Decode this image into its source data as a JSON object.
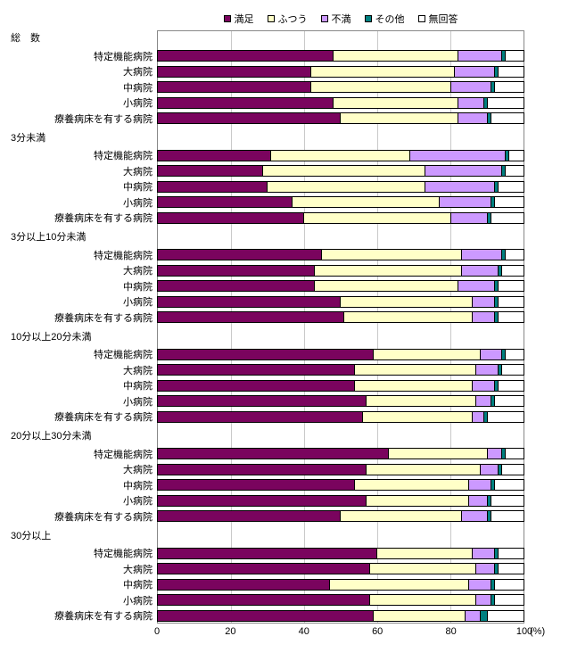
{
  "legend": [
    {
      "label": "満足",
      "color": "#7A045E"
    },
    {
      "label": "ふつう",
      "color": "#FFFFC8"
    },
    {
      "label": "不満",
      "color": "#CC99FF"
    },
    {
      "label": "その他",
      "color": "#008080"
    },
    {
      "label": "無回答",
      "color": "#FFFFFF"
    }
  ],
  "axis": {
    "ticks": [
      0,
      20,
      40,
      60,
      80,
      100
    ],
    "unit": "(%)",
    "min": 0,
    "max": 100,
    "gridlines": [
      20,
      40,
      60,
      80
    ]
  },
  "chart_data": {
    "type": "bar",
    "stacked": true,
    "orientation": "horizontal",
    "title": "",
    "xlabel": "(%)",
    "xlim": [
      0,
      100
    ],
    "series_names": [
      "満足",
      "ふつう",
      "不満",
      "その他",
      "無回答"
    ],
    "colors": [
      "#7A045E",
      "#FFFFC8",
      "#CC99FF",
      "#008080",
      "#FFFFFF"
    ],
    "groups": [
      {
        "label": "総　数",
        "rows": [
          {
            "label": "特定機能病院",
            "values": [
              48,
              34,
              12,
              1,
              5
            ]
          },
          {
            "label": "大病院",
            "values": [
              42,
              39,
              11,
              1,
              7
            ]
          },
          {
            "label": "中病院",
            "values": [
              42,
              38,
              11,
              1,
              8
            ]
          },
          {
            "label": "小病院",
            "values": [
              48,
              34,
              7,
              1,
              10
            ]
          },
          {
            "label": "療養病床を有する病院",
            "values": [
              50,
              32,
              8,
              1,
              9
            ]
          }
        ]
      },
      {
        "label": "3分未満",
        "rows": [
          {
            "label": "特定機能病院",
            "values": [
              31,
              38,
              26,
              1,
              4
            ]
          },
          {
            "label": "大病院",
            "values": [
              29,
              44,
              21,
              1,
              5
            ]
          },
          {
            "label": "中病院",
            "values": [
              30,
              43,
              19,
              1,
              7
            ]
          },
          {
            "label": "小病院",
            "values": [
              37,
              40,
              14,
              1,
              8
            ]
          },
          {
            "label": "療養病床を有する病院",
            "values": [
              40,
              40,
              10,
              1,
              9
            ]
          }
        ]
      },
      {
        "label": "3分以上10分未満",
        "rows": [
          {
            "label": "特定機能病院",
            "values": [
              45,
              38,
              11,
              1,
              5
            ]
          },
          {
            "label": "大病院",
            "values": [
              43,
              40,
              10,
              1,
              6
            ]
          },
          {
            "label": "中病院",
            "values": [
              43,
              39,
              10,
              1,
              7
            ]
          },
          {
            "label": "小病院",
            "values": [
              50,
              36,
              6,
              1,
              7
            ]
          },
          {
            "label": "療養病床を有する病院",
            "values": [
              51,
              35,
              6,
              1,
              7
            ]
          }
        ]
      },
      {
        "label": "10分以上20分未満",
        "rows": [
          {
            "label": "特定機能病院",
            "values": [
              59,
              29,
              6,
              1,
              5
            ]
          },
          {
            "label": "大病院",
            "values": [
              54,
              33,
              6,
              1,
              6
            ]
          },
          {
            "label": "中病院",
            "values": [
              54,
              32,
              6,
              1,
              7
            ]
          },
          {
            "label": "小病院",
            "values": [
              57,
              30,
              4,
              1,
              8
            ]
          },
          {
            "label": "療養病床を有する病院",
            "values": [
              56,
              30,
              3,
              1,
              10
            ]
          }
        ]
      },
      {
        "label": "20分以上30分未満",
        "rows": [
          {
            "label": "特定機能病院",
            "values": [
              63,
              27,
              4,
              1,
              5
            ]
          },
          {
            "label": "大病院",
            "values": [
              57,
              31,
              5,
              1,
              6
            ]
          },
          {
            "label": "中病院",
            "values": [
              54,
              31,
              6,
              1,
              8
            ]
          },
          {
            "label": "小病院",
            "values": [
              57,
              28,
              5,
              1,
              9
            ]
          },
          {
            "label": "療養病床を有する病院",
            "values": [
              50,
              33,
              7,
              1,
              9
            ]
          }
        ]
      },
      {
        "label": "30分以上",
        "rows": [
          {
            "label": "特定機能病院",
            "values": [
              60,
              26,
              6,
              1,
              7
            ]
          },
          {
            "label": "大病院",
            "values": [
              58,
              29,
              5,
              1,
              7
            ]
          },
          {
            "label": "中病院",
            "values": [
              47,
              38,
              6,
              1,
              8
            ]
          },
          {
            "label": "小病院",
            "values": [
              58,
              29,
              4,
              1,
              8
            ]
          },
          {
            "label": "療養病床を有する病院",
            "values": [
              59,
              25,
              4,
              2,
              10
            ]
          }
        ]
      }
    ]
  }
}
